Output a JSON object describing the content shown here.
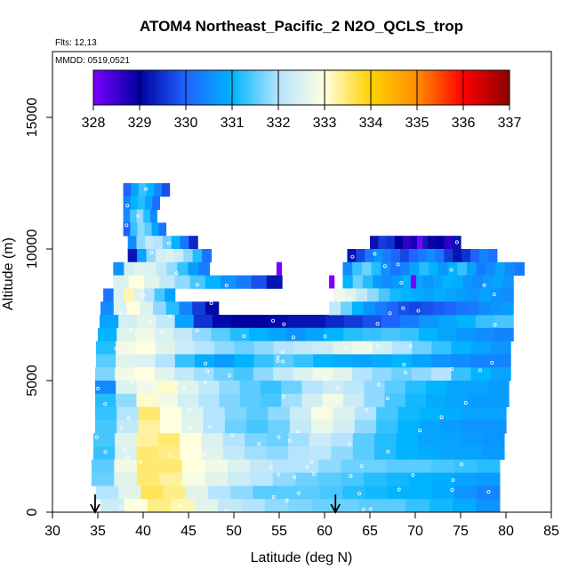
{
  "chart_data": {
    "type": "heatmap",
    "title": "ATOM4 Northeast_Pacific_2 N2O_QCLS_trop",
    "flights_note": "Flts: 12,13",
    "date_note": "MMDD: 0519,0521",
    "xlabel": "Latitude (deg N)",
    "ylabel": "Altitude (m)",
    "xlim": [
      30,
      85
    ],
    "ylim": [
      0,
      17500
    ],
    "x_ticks": [
      30,
      35,
      40,
      45,
      50,
      55,
      60,
      65,
      70,
      75,
      80,
      85
    ],
    "y_ticks": [
      0,
      5000,
      10000,
      15000
    ],
    "colorbar": {
      "min": 328,
      "max": 337,
      "ticks": [
        328,
        329,
        330,
        331,
        332,
        333,
        334,
        335,
        336,
        337
      ],
      "colors": [
        "#7a00ff",
        "#0000a0",
        "#1f64ff",
        "#00b4ff",
        "#b4e4ff",
        "#ffffe0",
        "#ffd200",
        "#ff8c00",
        "#ff0000",
        "#8b0000"
      ]
    },
    "arrows_lat": [
      34.7,
      61.2
    ],
    "bands": [
      {
        "alt": 12250,
        "lat": [
          37.8,
          42.9
        ],
        "values": [
          330.0,
          330.8,
          331.3,
          331.0,
          330.4,
          329.8
        ]
      },
      {
        "alt": 11750,
        "lat": [
          37.8,
          41.8
        ],
        "values": [
          330.4,
          331.0,
          331.2,
          330.8,
          330.1
        ]
      },
      {
        "alt": 11250,
        "lat": [
          37.8,
          41.5
        ],
        "values": [
          330.5,
          331.4,
          331.8,
          331.2,
          330.5
        ]
      },
      {
        "alt": 10750,
        "lat": [
          37.8,
          42.5
        ],
        "values": [
          330.0,
          331.3,
          331.8,
          331.5,
          330.8,
          330.2
        ]
      },
      {
        "alt": 10250,
        "lat": [
          38.3,
          46.0
        ],
        "values": [
          330.5,
          331.8,
          332.2,
          332.0,
          331.6,
          331.0,
          330.2,
          329.4
        ]
      },
      {
        "alt": 9750,
        "lat": [
          38.3,
          47.5
        ],
        "values": [
          329.2,
          330.8,
          331.8,
          332.4,
          332.5,
          332.3,
          331.8,
          331.2,
          330.2
        ]
      },
      {
        "alt": 9250,
        "lat": [
          36.7,
          47.3
        ],
        "values": [
          330.6,
          332.4,
          332.6,
          332.5,
          332.2,
          331.8,
          331.3,
          330.7,
          330.3
        ]
      },
      {
        "alt": 8750,
        "lat": [
          36.7,
          55.3
        ],
        "values": [
          332.5,
          333.0,
          332.6,
          332.2,
          331.8,
          331.4,
          331.0,
          330.6,
          330.3,
          329.8,
          329.2
        ]
      },
      {
        "alt": 8250,
        "lat": [
          35.6,
          43.5
        ],
        "values": [
          330.2,
          332.5,
          333.2,
          332.6,
          332.0,
          331.4,
          330.8
        ]
      },
      {
        "alt": 7750,
        "lat": [
          35.3,
          48.3
        ],
        "values": [
          330.5,
          332.5,
          333.0,
          332.5,
          331.8,
          331.2,
          330.4,
          329.6,
          329.1
        ]
      },
      {
        "alt": 7250,
        "lat": [
          35.2,
          80.8
        ],
        "values": [
          330.8,
          332.4,
          332.6,
          332.2,
          330.8,
          329.5,
          329.1,
          329.0,
          329.0,
          329.1,
          329.2,
          329.2,
          329.4,
          329.6,
          329.8,
          330.0,
          330.3,
          330.6,
          330.8,
          331.0,
          331.3,
          331.4
        ]
      },
      {
        "alt": 6750,
        "lat": [
          35.0,
          80.8
        ],
        "values": [
          331.0,
          332.6,
          332.8,
          332.5,
          332.2,
          331.8,
          331.5,
          331.2,
          331.0,
          330.8,
          330.6,
          330.8,
          331.0,
          331.2,
          331.3,
          331.4,
          331.3,
          331.0,
          330.8,
          330.6,
          330.5,
          330.4
        ]
      },
      {
        "alt": 6250,
        "lat": [
          34.8,
          80.5
        ],
        "values": [
          331.2,
          332.8,
          333.0,
          332.6,
          332.3,
          332.0,
          331.8,
          331.6,
          331.8,
          332.0,
          332.2,
          332.3,
          332.6,
          332.8,
          332.4,
          332.0,
          331.6,
          331.3,
          331.0,
          330.8,
          330.6
        ]
      },
      {
        "alt": 5750,
        "lat": [
          34.8,
          80.5
        ],
        "values": [
          331.5,
          332.6,
          332.5,
          332.0,
          331.3,
          330.9,
          330.7,
          331.0,
          331.3,
          331.5,
          331.3,
          331.0,
          330.9,
          330.8,
          330.9,
          331.0,
          330.8,
          330.6,
          330.5,
          330.4,
          330.4
        ]
      },
      {
        "alt": 5250,
        "lat": [
          34.7,
          80.5
        ],
        "values": [
          331.7,
          332.8,
          333.0,
          332.6,
          332.2,
          331.9,
          331.6,
          331.4,
          331.8,
          332.2,
          332.5,
          332.8,
          332.6,
          332.0,
          331.8,
          331.6,
          331.8,
          332.0,
          331.3,
          331.0,
          330.8
        ]
      },
      {
        "alt": 4750,
        "lat": [
          34.7,
          80.3
        ],
        "values": [
          330.5,
          332.5,
          332.8,
          333.1,
          332.6,
          332.2,
          331.8,
          331.5,
          331.3,
          331.6,
          332.0,
          332.3,
          332.1,
          331.8,
          331.5,
          331.2,
          331.0,
          330.8,
          330.8,
          330.7
        ]
      },
      {
        "alt": 4250,
        "lat": [
          34.7,
          80.3
        ],
        "values": [
          331.2,
          331.8,
          333.1,
          332.8,
          332.4,
          332.0,
          331.7,
          331.5,
          331.4,
          331.9,
          332.4,
          332.8,
          332.3,
          331.8,
          331.4,
          331.1,
          330.9,
          330.8,
          330.7,
          330.7
        ]
      },
      {
        "alt": 3750,
        "lat": [
          34.7,
          80.0
        ],
        "values": [
          331.3,
          332.0,
          333.5,
          333.0,
          332.5,
          332.0,
          331.7,
          331.5,
          331.8,
          332.3,
          332.9,
          332.5,
          332.0,
          331.4,
          331.1,
          331.0,
          330.9,
          330.8,
          330.8
        ]
      },
      {
        "alt": 3250,
        "lat": [
          34.7,
          80.0
        ],
        "values": [
          331.4,
          332.2,
          333.3,
          333.0,
          332.6,
          332.0,
          331.6,
          331.4,
          331.6,
          332.2,
          332.7,
          332.4,
          331.8,
          331.3,
          331.0,
          330.8,
          330.7,
          330.6,
          330.6
        ]
      },
      {
        "alt": 2750,
        "lat": [
          34.5,
          79.8
        ],
        "values": [
          331.4,
          332.6,
          333.3,
          333.5,
          333.0,
          332.5,
          332.0,
          331.7,
          331.6,
          331.9,
          332.3,
          332.0,
          331.5,
          331.2,
          331.0,
          330.8,
          330.8,
          330.7,
          330.6
        ]
      },
      {
        "alt": 2250,
        "lat": [
          34.5,
          79.8
        ],
        "values": [
          331.3,
          332.5,
          333.5,
          333.4,
          333.0,
          332.6,
          332.2,
          331.9,
          331.8,
          332.0,
          332.1,
          331.8,
          331.5,
          331.2,
          331.0,
          330.9,
          330.8,
          330.8,
          330.7
        ]
      },
      {
        "alt": 1750,
        "lat": [
          34.3,
          79.3
        ],
        "values": [
          331.5,
          332.8,
          333.5,
          333.5,
          333.0,
          332.8,
          332.5,
          332.2,
          332.0,
          332.0,
          331.8,
          331.6,
          331.6,
          331.5,
          331.5,
          331.4,
          331.3,
          331.2
        ]
      },
      {
        "alt": 1250,
        "lat": [
          34.3,
          79.3
        ],
        "values": [
          331.6,
          332.6,
          333.5,
          333.3,
          332.9,
          332.6,
          332.3,
          332.1,
          331.8,
          331.6,
          331.5,
          331.4,
          331.2,
          331.1,
          331.0,
          330.9,
          330.8,
          330.7
        ]
      },
      {
        "alt": 750,
        "lat": [
          34.8,
          79.3
        ],
        "values": [
          332.0,
          332.6,
          333.6,
          333.4,
          332.6,
          332.0,
          331.8,
          331.5,
          331.5,
          331.5,
          331.4,
          331.2,
          331.1,
          331.0,
          331.0,
          330.9,
          330.6,
          330.4
        ]
      },
      {
        "alt": 250,
        "lat": [
          35.3,
          79.3
        ],
        "values": [
          332.3,
          333.0,
          333.4,
          333.2,
          332.6,
          332.2,
          332.0,
          331.8,
          331.7,
          331.6,
          331.6,
          331.5,
          331.5,
          331.3,
          331.1,
          330.9,
          330.6
        ]
      },
      {
        "alt": 10250,
        "lat": [
          65.0,
          75.0
        ],
        "values": [
          329.2,
          329.6,
          329.5,
          329.0,
          328.6,
          328.8,
          329.3,
          328.9,
          329.0,
          328.6,
          329.2
        ]
      },
      {
        "alt": 9750,
        "lat": [
          62.5,
          79.0
        ],
        "values": [
          329.2,
          329.7,
          330.3,
          330.6,
          330.3,
          330.0,
          329.7,
          330.0,
          330.3,
          330.5,
          330.2,
          329.6,
          329.2,
          329.5,
          330.0,
          330.4,
          330.2
        ]
      },
      {
        "alt": 9250,
        "lat": [
          62.0,
          82.0
        ],
        "values": [
          330.5,
          331.3,
          331.6,
          331.2,
          330.6,
          330.2,
          330.4,
          330.8,
          331.2,
          331.0,
          330.6,
          331.0,
          331.3,
          330.8,
          330.3,
          330.5,
          330.8,
          330.5,
          330.3
        ]
      },
      {
        "alt": 8750,
        "lat": [
          62.0,
          80.8
        ],
        "values": [
          331.0,
          331.6,
          331.2,
          330.7,
          330.5,
          330.7,
          331.0,
          330.8,
          330.6,
          330.8,
          331.0,
          330.9,
          330.6,
          330.5,
          330.7,
          330.8,
          330.6
        ]
      },
      {
        "alt": 8250,
        "lat": [
          61.0,
          80.8
        ],
        "values": [
          332.8,
          332.6,
          332.2,
          331.8,
          331.4,
          331.1,
          331.0,
          330.9,
          330.8,
          330.9,
          330.8,
          330.7,
          330.6,
          330.8,
          330.6,
          330.5
        ]
      },
      {
        "alt": 7750,
        "lat": [
          60.5,
          80.8
        ],
        "values": [
          332.2,
          331.6,
          331.0,
          330.6,
          330.3,
          330.0,
          329.8,
          329.7,
          329.8,
          329.9,
          330.0,
          330.2,
          330.3,
          330.5,
          330.6,
          330.7
        ]
      }
    ],
    "purple_cells": [
      {
        "alt": 9250,
        "lat": 55.0
      },
      {
        "alt": 8750,
        "lat": 60.8
      },
      {
        "alt": 8750,
        "lat": 69.8
      },
      {
        "alt": 10250,
        "lat": 70.5
      }
    ]
  }
}
